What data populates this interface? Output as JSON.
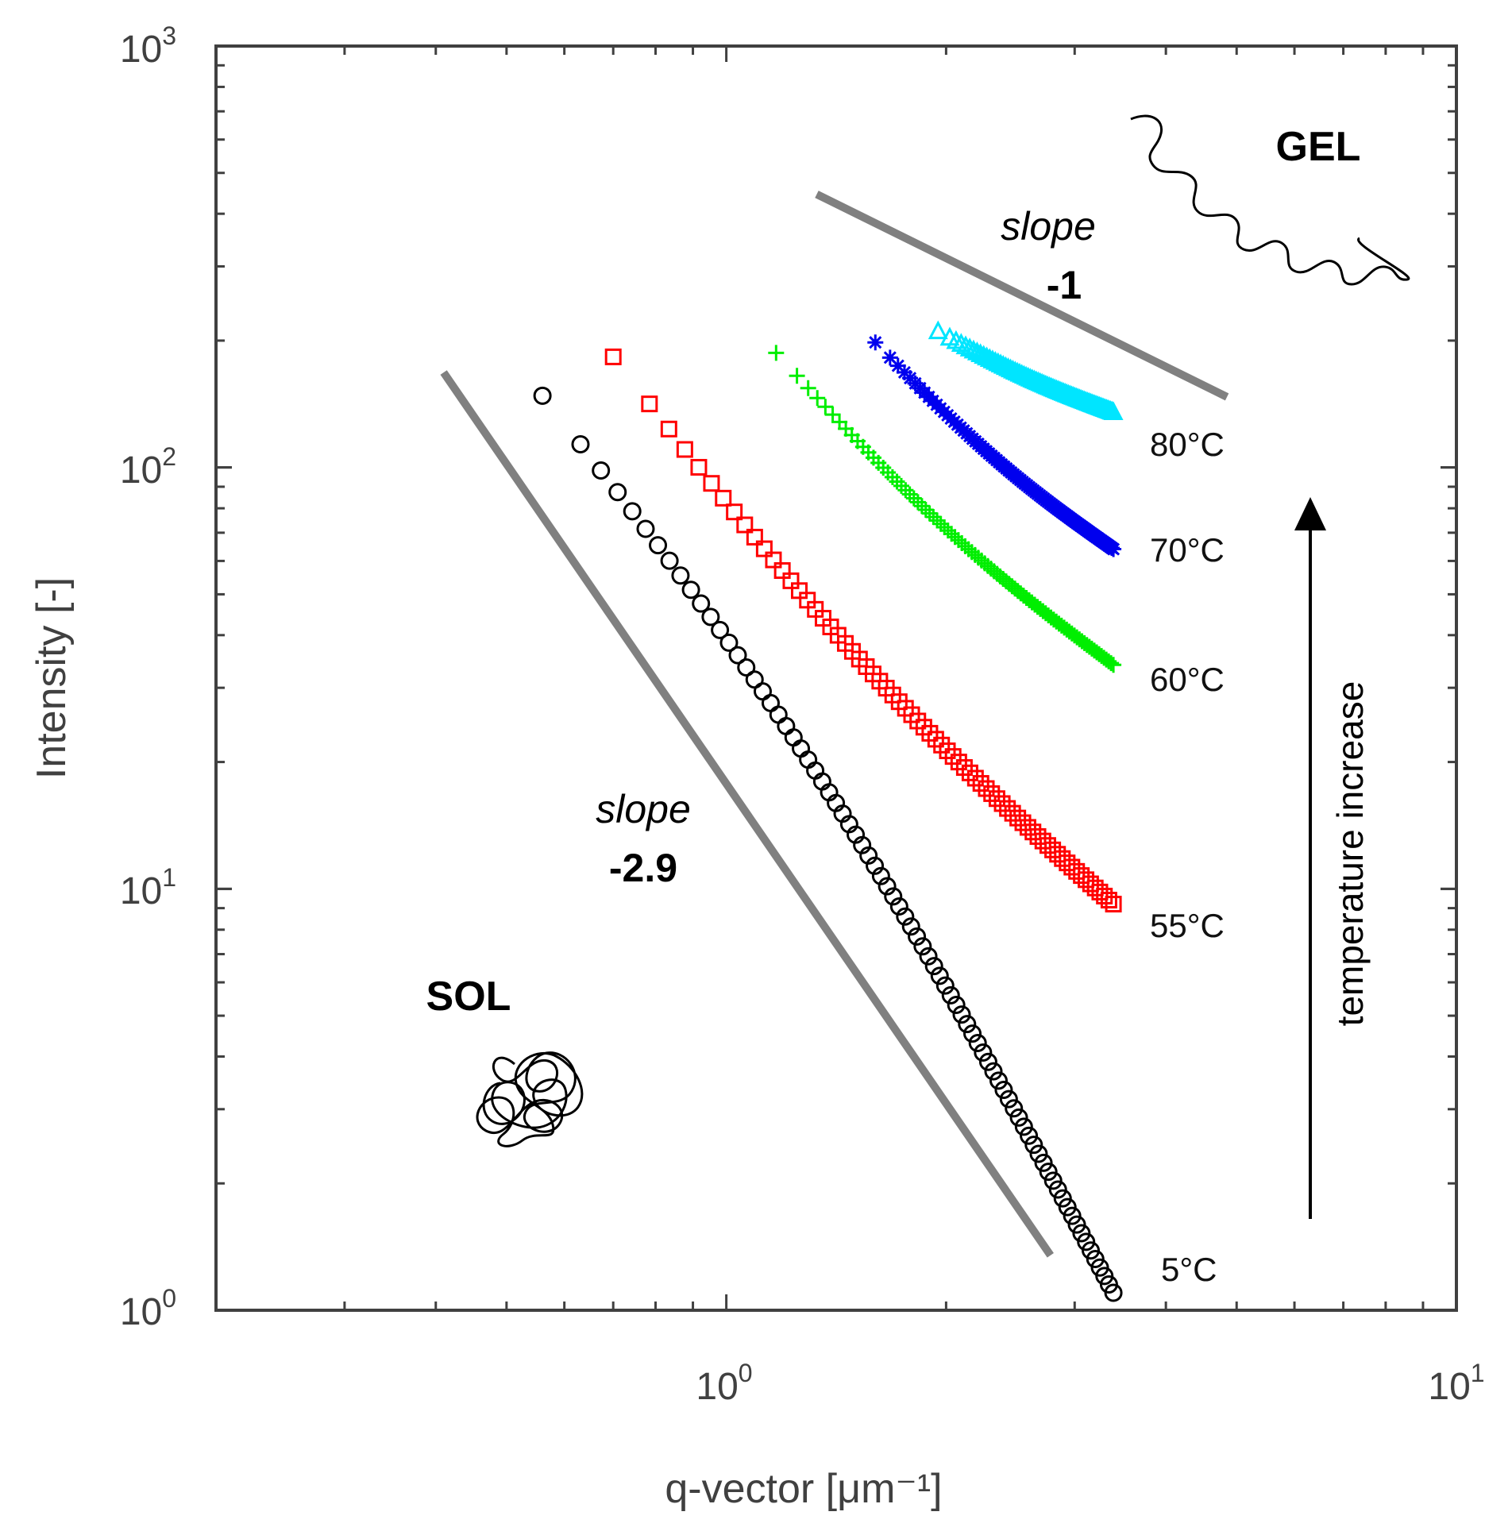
{
  "chart_data": {
    "type": "scatter",
    "xscale": "log",
    "yscale": "log",
    "xlim": [
      0.2,
      10
    ],
    "ylim": [
      1,
      1000
    ],
    "xlabel": "q-vector [μm⁻¹]",
    "ylabel": "Intensity [-]",
    "x_ticks": [
      {
        "value": 1,
        "base": "10",
        "exp": "0"
      },
      {
        "value": 10,
        "base": "10",
        "exp": "1"
      }
    ],
    "y_ticks": [
      {
        "value": 1,
        "base": "10",
        "exp": "0"
      },
      {
        "value": 10,
        "base": "10",
        "exp": "1"
      },
      {
        "value": 100,
        "base": "10",
        "exp": "2"
      },
      {
        "value": 1000,
        "base": "10",
        "exp": "3"
      }
    ],
    "series": [
      {
        "name": "5°C",
        "label": "5°C",
        "marker": "circle",
        "color": "#000000",
        "q_start": 0.56,
        "q_end": 3.39,
        "i_start": 148,
        "i_end": 1.1,
        "n": 80
      },
      {
        "name": "55°C",
        "label": "55°C",
        "marker": "square",
        "color": "#ff0000",
        "q_start": 0.7,
        "q_end": 3.39,
        "i_start": 183,
        "i_end": 9.2,
        "n": 70
      },
      {
        "name": "60°C",
        "label": "60°C",
        "marker": "plus",
        "color": "#00ee00",
        "q_start": 1.17,
        "q_end": 3.39,
        "i_start": 187,
        "i_end": 34,
        "n": 90
      },
      {
        "name": "70°C",
        "label": "70°C",
        "marker": "star",
        "color": "#0000ee",
        "q_start": 1.6,
        "q_end": 3.39,
        "i_start": 198,
        "i_end": 64,
        "n": 90
      },
      {
        "name": "80°C",
        "label": "80°C",
        "marker": "triangle",
        "color": "#00e5ff",
        "q_start": 1.95,
        "q_end": 3.39,
        "i_start": 210,
        "i_end": 135,
        "n": 80
      }
    ],
    "reference_lines": [
      {
        "name": "slope -2.9",
        "x1": 0.41,
        "y1": 168,
        "x2": 2.78,
        "y2": 1.35,
        "color": "#808080"
      },
      {
        "name": "slope -1",
        "x1": 1.33,
        "y1": 445,
        "x2": 4.85,
        "y2": 147,
        "color": "#808080"
      }
    ],
    "annotations": {
      "slope_word": "slope",
      "slope_low_value": "-2.9",
      "slope_high_value": "-1",
      "sol": "SOL",
      "gel": "GEL",
      "arrow_text": "temperature increase"
    }
  }
}
